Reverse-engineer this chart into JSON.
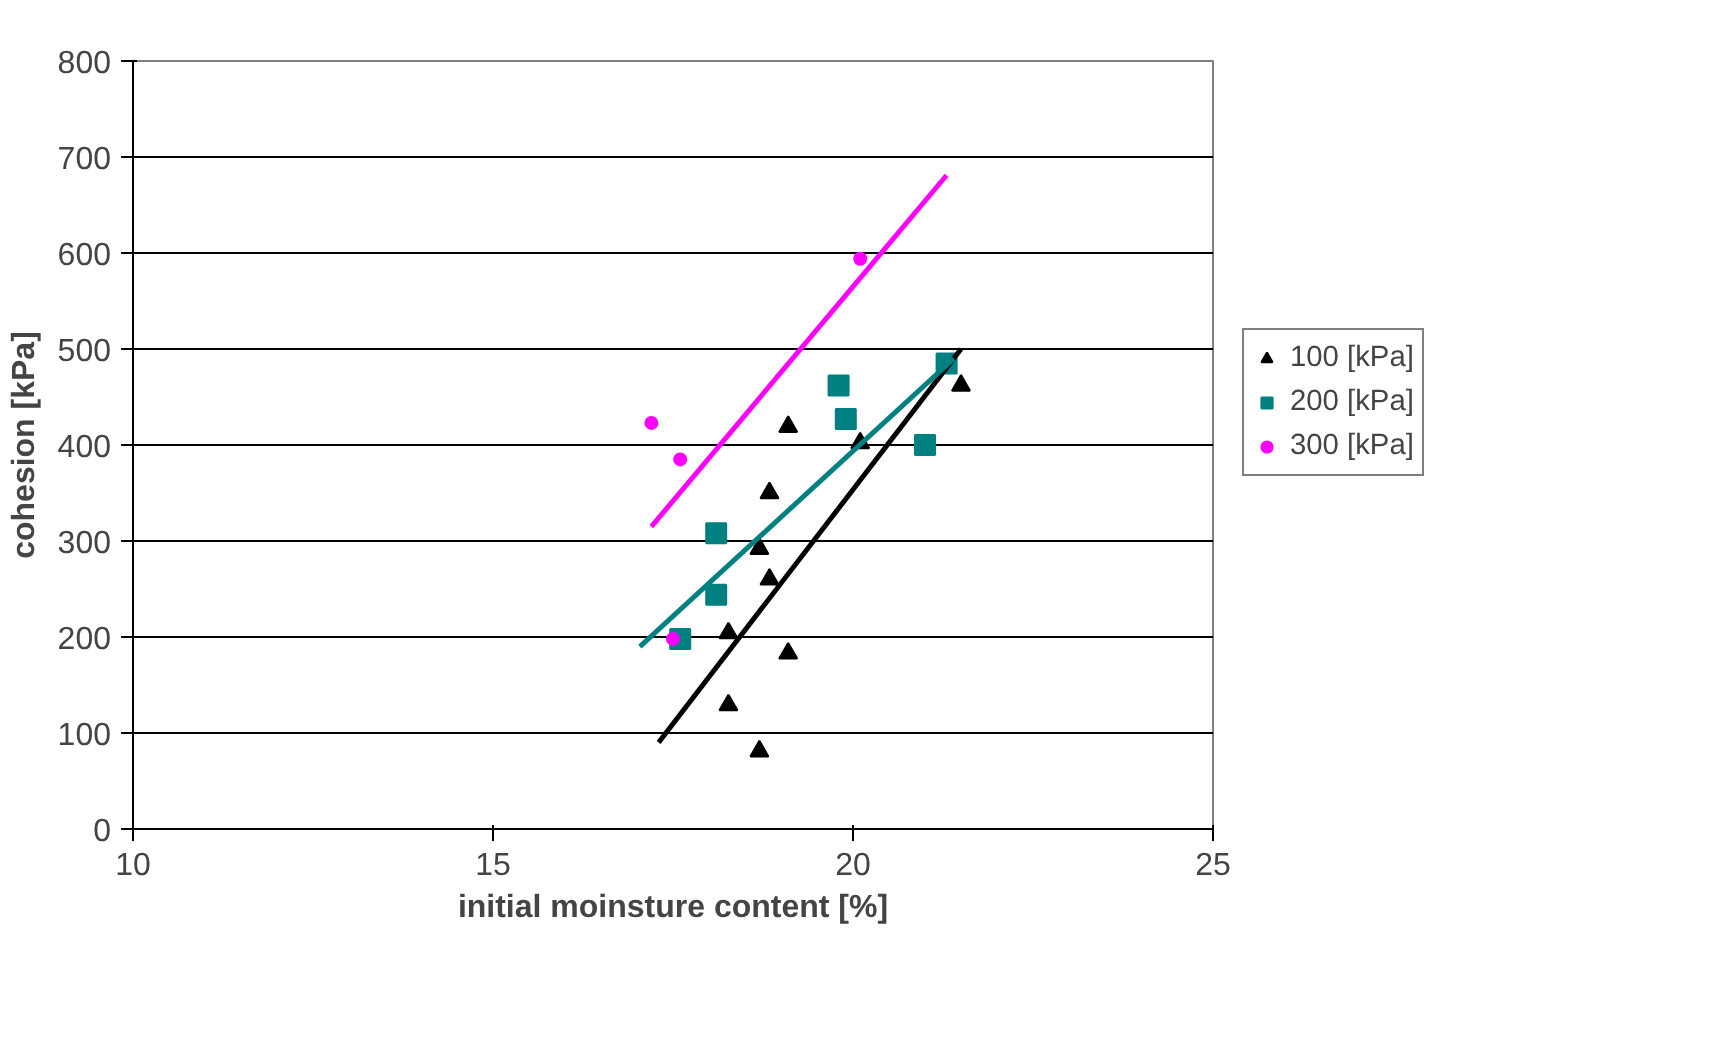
{
  "chart_data": {
    "type": "scatter",
    "xlabel": "initial moinsture content [%]",
    "ylabel": "cohesion [kPa]",
    "xlim": [
      10,
      25
    ],
    "xticks": [
      10,
      15,
      20,
      25
    ],
    "ylim": [
      0,
      800
    ],
    "yticks": [
      0,
      100,
      200,
      300,
      400,
      500,
      600,
      700,
      800
    ],
    "grid": "y",
    "legend": "right",
    "series": [
      {
        "name": "100 [kPa]",
        "color": "#000000",
        "marker": "triangle",
        "x": [
          19.1,
          18.84,
          18.7,
          18.84,
          18.27,
          19.1,
          18.27,
          18.7,
          21.5,
          20.1
        ],
        "values": [
          419,
          350,
          292,
          260,
          204,
          183,
          129,
          81,
          462,
          402
        ]
      },
      {
        "name": "200 [kPa]",
        "color": "#008080",
        "marker": "square",
        "x": [
          19.8,
          19.9,
          21.0,
          18.1,
          18.1,
          17.6,
          21.3
        ],
        "values": [
          462,
          427,
          400,
          308,
          244,
          198,
          485
        ]
      },
      {
        "name": "300 [kPa]",
        "color": "#ff00ff",
        "marker": "circle",
        "x": [
          17.2,
          17.6,
          17.5,
          20.1
        ],
        "values": [
          423,
          385,
          198,
          594
        ]
      },
      {
        "type": "line",
        "color": "#000000",
        "x": [
          17.3,
          21.5
        ],
        "values": [
          90,
          500
        ]
      },
      {
        "type": "line",
        "color": "#008080",
        "x": [
          17.04,
          21.4
        ],
        "values": [
          190,
          490
        ]
      },
      {
        "type": "line",
        "color": "#ff00ff",
        "x": [
          17.2,
          21.3
        ],
        "values": [
          315,
          681
        ]
      }
    ]
  }
}
